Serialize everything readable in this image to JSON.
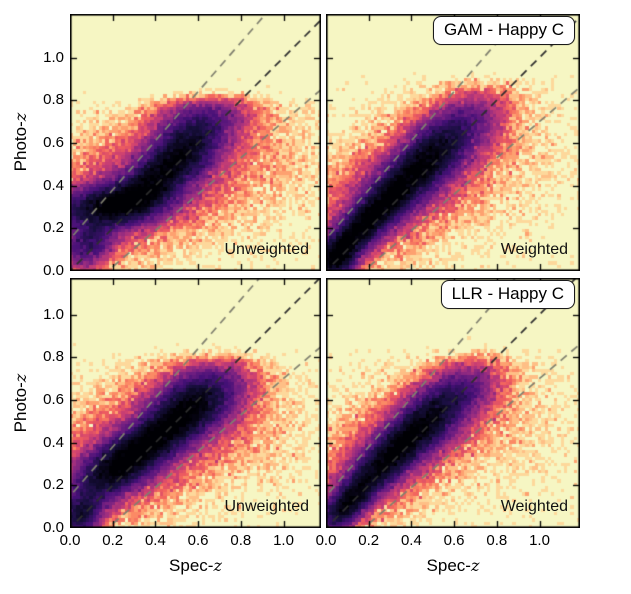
{
  "figure": {
    "background": "#ffffff",
    "panel_background": "#f6f6c3",
    "spine_color": "#000000",
    "text_color": "#000000",
    "title_box_background": "#ffffff",
    "title_box_border": "#1a1a1a"
  },
  "chart_data": {
    "type": "heatmap",
    "subtype": "2d_histogram_density_grid",
    "description": "2x2 grid of photometric vs spectroscopic redshift density histograms (magma_r colormap on pale-yellow background) comparing GAM and LLR estimators, unweighted vs weighted, for the Happy C sample",
    "axes": {
      "xlabel_prefix": "Spec-",
      "ylabel_prefix": "Photo-",
      "z_symbol": "z",
      "xlim": [
        0,
        1.175
      ],
      "ylim": [
        0,
        1.175
      ],
      "x_ticks": [
        0.0,
        0.2,
        0.4,
        0.6,
        0.8,
        1.0
      ],
      "y_ticks": [
        0.0,
        0.2,
        0.4,
        0.6,
        0.8,
        1.0
      ],
      "x_tick_labels": [
        "0.0",
        "0.2",
        "0.4",
        "0.6",
        "0.8",
        "1.0"
      ],
      "y_tick_labels": [
        "0.0",
        "0.2",
        "0.4",
        "0.6",
        "0.8",
        "1.0"
      ],
      "grid": false,
      "ticks_inward_all_sides": true
    },
    "colormap_stops": [
      [
        0.0,
        "#f6f6c3"
      ],
      [
        0.1,
        "#fde2a3"
      ],
      [
        0.2,
        "#fec98d"
      ],
      [
        0.3,
        "#fd9567"
      ],
      [
        0.4,
        "#f1605d"
      ],
      [
        0.5,
        "#cd4071"
      ],
      [
        0.6,
        "#9f2f7f"
      ],
      [
        0.7,
        "#721f81"
      ],
      [
        0.8,
        "#451077"
      ],
      [
        0.9,
        "#180f3e"
      ],
      [
        1.0,
        "#000004"
      ]
    ],
    "reference_lines": [
      {
        "name": "identity",
        "label": "photo-z = spec-z",
        "slope": 1.0,
        "intercept": 0.0,
        "style": "dashed",
        "color": "#2e2e2e",
        "width": 1.7
      },
      {
        "name": "outlier-upper",
        "label": "z_phot = z_spec + 0.15(1+z_spec)",
        "slope": 1.15,
        "intercept": 0.15,
        "style": "dashed",
        "color": "#80806f",
        "width": 1.7
      },
      {
        "name": "outlier-lower",
        "label": "z_phot = z_spec - 0.15(1+z_spec)",
        "slope": 0.85,
        "intercept": -0.15,
        "style": "dashed",
        "color": "#80806f",
        "width": 1.7
      }
    ],
    "panels": [
      {
        "id": "gam-unweighted",
        "row": 0,
        "col": 0,
        "title": null,
        "annotation": "Unweighted",
        "photoz_cap": 0.8,
        "seed": 11,
        "density_blobs": [
          {
            "x": 0.2,
            "y": 0.3,
            "sx": 0.15,
            "sy": 0.055,
            "th": 8,
            "a": 1.0
          },
          {
            "x": 0.4,
            "y": 0.42,
            "sx": 0.15,
            "sy": 0.065,
            "th": 42,
            "a": 0.85
          },
          {
            "x": 0.56,
            "y": 0.56,
            "sx": 0.11,
            "sy": 0.08,
            "th": 40,
            "a": 0.55
          },
          {
            "x": 0.62,
            "y": 0.69,
            "sx": 0.13,
            "sy": 0.075,
            "th": 15,
            "a": 0.3
          },
          {
            "x": 0.32,
            "y": 0.37,
            "sx": 0.24,
            "sy": 0.14,
            "th": 20,
            "a": 0.16
          },
          {
            "x": 0.09,
            "y": 0.12,
            "sx": 0.08,
            "sy": 0.06,
            "th": 45,
            "a": 0.5
          },
          {
            "x": 0.78,
            "y": 0.55,
            "sx": 0.17,
            "sy": 0.15,
            "th": 0,
            "a": 0.02
          },
          {
            "x": 0.5,
            "y": 0.45,
            "sx": 0.4,
            "sy": 0.26,
            "th": 12,
            "a": 0.005
          },
          {
            "x": 0.95,
            "y": 0.5,
            "sx": 0.2,
            "sy": 0.22,
            "th": 0,
            "a": 0.006
          }
        ]
      },
      {
        "id": "gam-weighted",
        "row": 0,
        "col": 1,
        "title": "GAM - Happy C",
        "annotation": "Weighted",
        "photoz_cap": 0.88,
        "seed": 22,
        "density_blobs": [
          {
            "x": 0.15,
            "y": 0.17,
            "sx": 0.13,
            "sy": 0.05,
            "th": 45,
            "a": 1.0
          },
          {
            "x": 0.35,
            "y": 0.38,
            "sx": 0.15,
            "sy": 0.06,
            "th": 43,
            "a": 1.0
          },
          {
            "x": 0.52,
            "y": 0.55,
            "sx": 0.12,
            "sy": 0.075,
            "th": 40,
            "a": 0.6
          },
          {
            "x": 0.05,
            "y": 0.05,
            "sx": 0.06,
            "sy": 0.05,
            "th": 45,
            "a": 0.9
          },
          {
            "x": 0.35,
            "y": 0.38,
            "sx": 0.25,
            "sy": 0.13,
            "th": 35,
            "a": 0.17
          },
          {
            "x": 0.65,
            "y": 0.68,
            "sx": 0.12,
            "sy": 0.075,
            "th": 25,
            "a": 0.26
          },
          {
            "x": 0.75,
            "y": 0.52,
            "sx": 0.2,
            "sy": 0.16,
            "th": 0,
            "a": 0.012
          },
          {
            "x": 0.5,
            "y": 0.45,
            "sx": 0.4,
            "sy": 0.28,
            "th": 15,
            "a": 0.005
          }
        ]
      },
      {
        "id": "llr-unweighted",
        "row": 1,
        "col": 0,
        "title": null,
        "annotation": "Unweighted",
        "photoz_cap": 0.8,
        "seed": 33,
        "density_blobs": [
          {
            "x": 0.38,
            "y": 0.4,
            "sx": 0.16,
            "sy": 0.06,
            "th": 36,
            "a": 1.0
          },
          {
            "x": 0.2,
            "y": 0.27,
            "sx": 0.13,
            "sy": 0.07,
            "th": 33,
            "a": 0.7
          },
          {
            "x": 0.55,
            "y": 0.55,
            "sx": 0.12,
            "sy": 0.08,
            "th": 33,
            "a": 0.6
          },
          {
            "x": 0.05,
            "y": 0.06,
            "sx": 0.07,
            "sy": 0.05,
            "th": 45,
            "a": 0.75
          },
          {
            "x": 0.64,
            "y": 0.62,
            "sx": 0.12,
            "sy": 0.08,
            "th": 18,
            "a": 0.4
          },
          {
            "x": 0.35,
            "y": 0.38,
            "sx": 0.25,
            "sy": 0.14,
            "th": 25,
            "a": 0.15
          },
          {
            "x": 0.8,
            "y": 0.48,
            "sx": 0.16,
            "sy": 0.13,
            "th": 0,
            "a": 0.018
          },
          {
            "x": 0.5,
            "y": 0.43,
            "sx": 0.38,
            "sy": 0.26,
            "th": 10,
            "a": 0.005
          }
        ]
      },
      {
        "id": "llr-weighted",
        "row": 1,
        "col": 1,
        "title": "LLR - Happy C",
        "annotation": "Weighted",
        "photoz_cap": 0.82,
        "seed": 44,
        "density_blobs": [
          {
            "x": 0.1,
            "y": 0.11,
            "sx": 0.1,
            "sy": 0.045,
            "th": 45,
            "a": 0.95
          },
          {
            "x": 0.3,
            "y": 0.33,
            "sx": 0.15,
            "sy": 0.055,
            "th": 43,
            "a": 1.0
          },
          {
            "x": 0.48,
            "y": 0.5,
            "sx": 0.12,
            "sy": 0.07,
            "th": 40,
            "a": 0.7
          },
          {
            "x": 0.63,
            "y": 0.63,
            "sx": 0.11,
            "sy": 0.07,
            "th": 25,
            "a": 0.33
          },
          {
            "x": 0.33,
            "y": 0.36,
            "sx": 0.24,
            "sy": 0.12,
            "th": 35,
            "a": 0.15
          },
          {
            "x": 0.8,
            "y": 0.52,
            "sx": 0.18,
            "sy": 0.13,
            "th": 0,
            "a": 0.014
          },
          {
            "x": 0.5,
            "y": 0.45,
            "sx": 0.4,
            "sy": 0.26,
            "th": 10,
            "a": 0.005
          }
        ]
      }
    ]
  }
}
